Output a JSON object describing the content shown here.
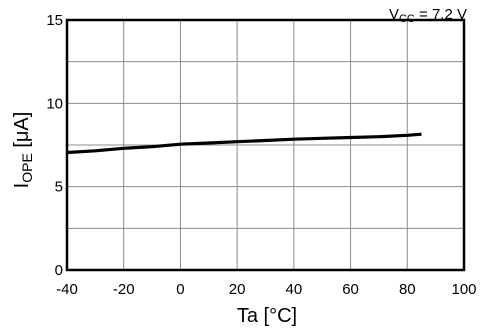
{
  "chart_data": {
    "type": "line",
    "xlabel": "Ta [°C]",
    "ylabel_main": "I",
    "ylabel_sub": "OPE",
    "ylabel_unit": " [μA]",
    "condition_main": "V",
    "condition_sub": "CC",
    "condition_value": " = 7.2 V",
    "xlim": [
      -40,
      100
    ],
    "ylim": [
      0,
      15
    ],
    "x_ticks": [
      -40,
      -20,
      0,
      20,
      40,
      60,
      80,
      100
    ],
    "y_ticks": [
      0,
      5,
      10,
      15
    ],
    "x_tick_labels": [
      "-40",
      "-20",
      "0",
      "20",
      "40",
      "60",
      "80",
      "100"
    ],
    "y_tick_labels": [
      "0",
      "5",
      "10",
      "15"
    ],
    "grid": true,
    "series": [
      {
        "x": [
          -40,
          -30,
          -20,
          -10,
          0,
          10,
          20,
          30,
          40,
          50,
          60,
          70,
          80,
          85
        ],
        "y": [
          7.05,
          7.15,
          7.3,
          7.4,
          7.55,
          7.62,
          7.7,
          7.77,
          7.85,
          7.9,
          7.95,
          8.0,
          8.08,
          8.15
        ],
        "color": "#000000"
      }
    ]
  }
}
